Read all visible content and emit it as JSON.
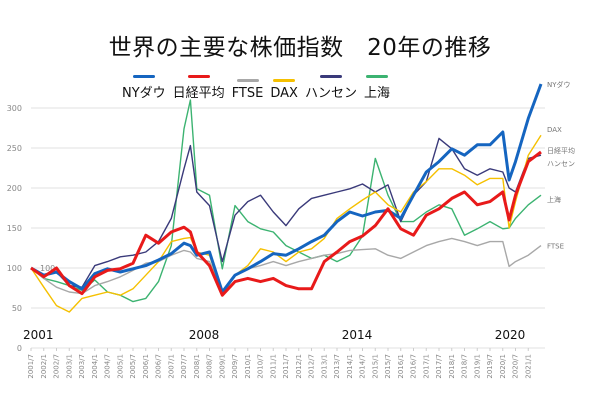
{
  "chart_data": {
    "type": "line",
    "title": "世界の主要な株価指数　20年の推移",
    "ylim": [
      0,
      300
    ],
    "yticks": [
      0,
      50,
      100,
      150,
      200,
      250,
      300
    ],
    "grid": true,
    "legend_placement": "top",
    "xtick_labels": [
      "2001/7",
      "2002/1",
      "2002/7",
      "2003/1",
      "2003/7",
      "2004/1",
      "2004/7",
      "2005/1",
      "2005/7",
      "2006/1",
      "2006/7",
      "2007/1",
      "2007/7",
      "2008/1",
      "2008/7",
      "2009/1",
      "2009/7",
      "2010/1",
      "2010/7",
      "2011/1",
      "2011/7",
      "2012/1",
      "2012/7",
      "2013/1",
      "2013/7",
      "2014/1",
      "2014/7",
      "2015/1",
      "2015/7",
      "2016/1",
      "2016/7",
      "2017/1",
      "2017/7",
      "2018/1",
      "2018/7",
      "2019/1",
      "2019/7",
      "2020/1",
      "2020/7",
      "2021/1"
    ],
    "year_labels": [
      "2001",
      "2008",
      "2014",
      "2020"
    ],
    "annotation": "100",
    "x": [
      "2001/7",
      "2002/1",
      "2002/7",
      "2003/1",
      "2003/7",
      "2004/1",
      "2004/7",
      "2005/1",
      "2005/7",
      "2006/1",
      "2006/7",
      "2007/1",
      "2007/7",
      "2007/10",
      "2008/1",
      "2008/7",
      "2009/1",
      "2009/7",
      "2010/1",
      "2010/7",
      "2011/1",
      "2011/7",
      "2012/1",
      "2012/7",
      "2013/1",
      "2013/7",
      "2014/1",
      "2014/7",
      "2015/1",
      "2015/7",
      "2016/1",
      "2016/7",
      "2017/1",
      "2017/7",
      "2018/1",
      "2018/7",
      "2019/1",
      "2019/7",
      "2020/1",
      "2020/4",
      "2020/7",
      "2021/1",
      "2021/7"
    ],
    "series": [
      {
        "name": "NYダウ",
        "end_label": "NYダウ",
        "color": "#1565c0",
        "values": [
          100,
          91,
          95,
          83,
          74,
          93,
          99,
          95,
          99,
          103,
          110,
          118,
          131,
          128,
          116,
          120,
          70,
          91,
          99,
          108,
          118,
          116,
          124,
          133,
          141,
          158,
          170,
          165,
          170,
          172,
          162,
          191,
          220,
          233,
          249,
          241,
          254,
          254,
          270,
          210,
          233,
          287,
          330
        ]
      },
      {
        "name": "日経平均",
        "end_label": "日経平均",
        "color": "#e81a1a",
        "values": [
          100,
          89,
          100,
          78,
          68,
          89,
          97,
          99,
          106,
          141,
          131,
          145,
          151,
          145,
          120,
          103,
          66,
          83,
          87,
          83,
          87,
          78,
          74,
          74,
          108,
          120,
          133,
          140,
          153,
          174,
          149,
          141,
          166,
          174,
          187,
          195,
          179,
          183,
          195,
          160,
          191,
          233,
          245
        ]
      },
      {
        "name": "FTSE",
        "end_label": "FTSE",
        "color": "#a8a8a8",
        "values": [
          100,
          87,
          76,
          70,
          68,
          78,
          83,
          89,
          97,
          106,
          108,
          116,
          122,
          120,
          112,
          108,
          70,
          91,
          99,
          103,
          108,
          103,
          108,
          112,
          116,
          118,
          122,
          123,
          124,
          116,
          112,
          120,
          128,
          133,
          137,
          133,
          128,
          133,
          133,
          102,
          108,
          116,
          128
        ]
      },
      {
        "name": "DAX",
        "end_label": "DAX",
        "color": "#f5c000",
        "values": [
          100,
          76,
          53,
          45,
          62,
          66,
          70,
          66,
          74,
          91,
          108,
          133,
          137,
          138,
          120,
          116,
          66,
          91,
          103,
          124,
          120,
          108,
          120,
          124,
          137,
          162,
          174,
          185,
          195,
          179,
          170,
          195,
          208,
          224,
          224,
          216,
          204,
          212,
          212,
          150,
          183,
          241,
          266
        ]
      },
      {
        "name": "ハンセン",
        "end_label": "ハンセン",
        "color": "#3a3a7a",
        "values": [
          100,
          91,
          95,
          78,
          76,
          103,
          108,
          114,
          116,
          120,
          133,
          162,
          224,
          253,
          195,
          178,
          108,
          166,
          183,
          191,
          170,
          153,
          174,
          187,
          191,
          195,
          199,
          205,
          195,
          204,
          158,
          191,
          208,
          262,
          249,
          224,
          216,
          224,
          220,
          200,
          195,
          237,
          241
        ]
      },
      {
        "name": "上海",
        "end_label": "上海",
        "color": "#3cb371",
        "values": [
          100,
          87,
          83,
          78,
          72,
          85,
          70,
          66,
          58,
          62,
          83,
          128,
          274,
          310,
          199,
          191,
          99,
          178,
          158,
          149,
          145,
          128,
          120,
          112,
          116,
          108,
          116,
          140,
          237,
          191,
          158,
          158,
          170,
          179,
          174,
          141,
          149,
          158,
          149,
          150,
          162,
          179,
          191
        ]
      }
    ]
  }
}
